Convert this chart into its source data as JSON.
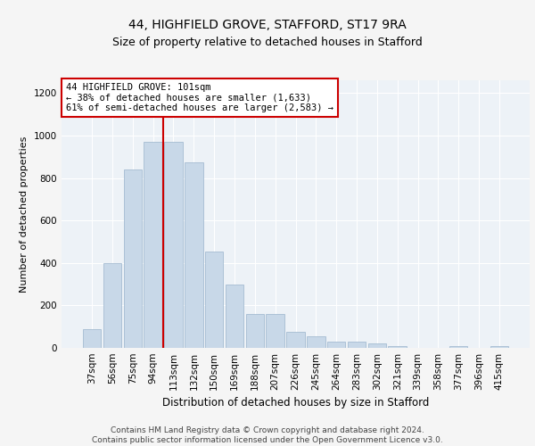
{
  "title1": "44, HIGHFIELD GROVE, STAFFORD, ST17 9RA",
  "title2": "Size of property relative to detached houses in Stafford",
  "xlabel": "Distribution of detached houses by size in Stafford",
  "ylabel": "Number of detached properties",
  "categories": [
    "37sqm",
    "56sqm",
    "75sqm",
    "94sqm",
    "113sqm",
    "132sqm",
    "150sqm",
    "169sqm",
    "188sqm",
    "207sqm",
    "226sqm",
    "245sqm",
    "264sqm",
    "283sqm",
    "302sqm",
    "321sqm",
    "339sqm",
    "358sqm",
    "377sqm",
    "396sqm",
    "415sqm"
  ],
  "values": [
    90,
    400,
    840,
    970,
    970,
    875,
    455,
    300,
    160,
    160,
    75,
    55,
    30,
    30,
    20,
    10,
    0,
    0,
    10,
    0,
    10
  ],
  "bar_color": "#c8d8e8",
  "bar_edge_color": "#9ab4cc",
  "vline_x": 3.5,
  "vline_color": "#cc0000",
  "annotation_text": "44 HIGHFIELD GROVE: 101sqm\n← 38% of detached houses are smaller (1,633)\n61% of semi-detached houses are larger (2,583) →",
  "annotation_box_color": "#ffffff",
  "annotation_box_edge_color": "#cc0000",
  "ylim": [
    0,
    1260
  ],
  "yticks": [
    0,
    200,
    400,
    600,
    800,
    1000,
    1200
  ],
  "background_color": "#edf2f7",
  "fig_background_color": "#f5f5f5",
  "footer_text": "Contains HM Land Registry data © Crown copyright and database right 2024.\nContains public sector information licensed under the Open Government Licence v3.0.",
  "title1_fontsize": 10,
  "title2_fontsize": 9,
  "xlabel_fontsize": 8.5,
  "ylabel_fontsize": 8,
  "tick_fontsize": 7.5,
  "annotation_fontsize": 7.5,
  "footer_fontsize": 6.5
}
